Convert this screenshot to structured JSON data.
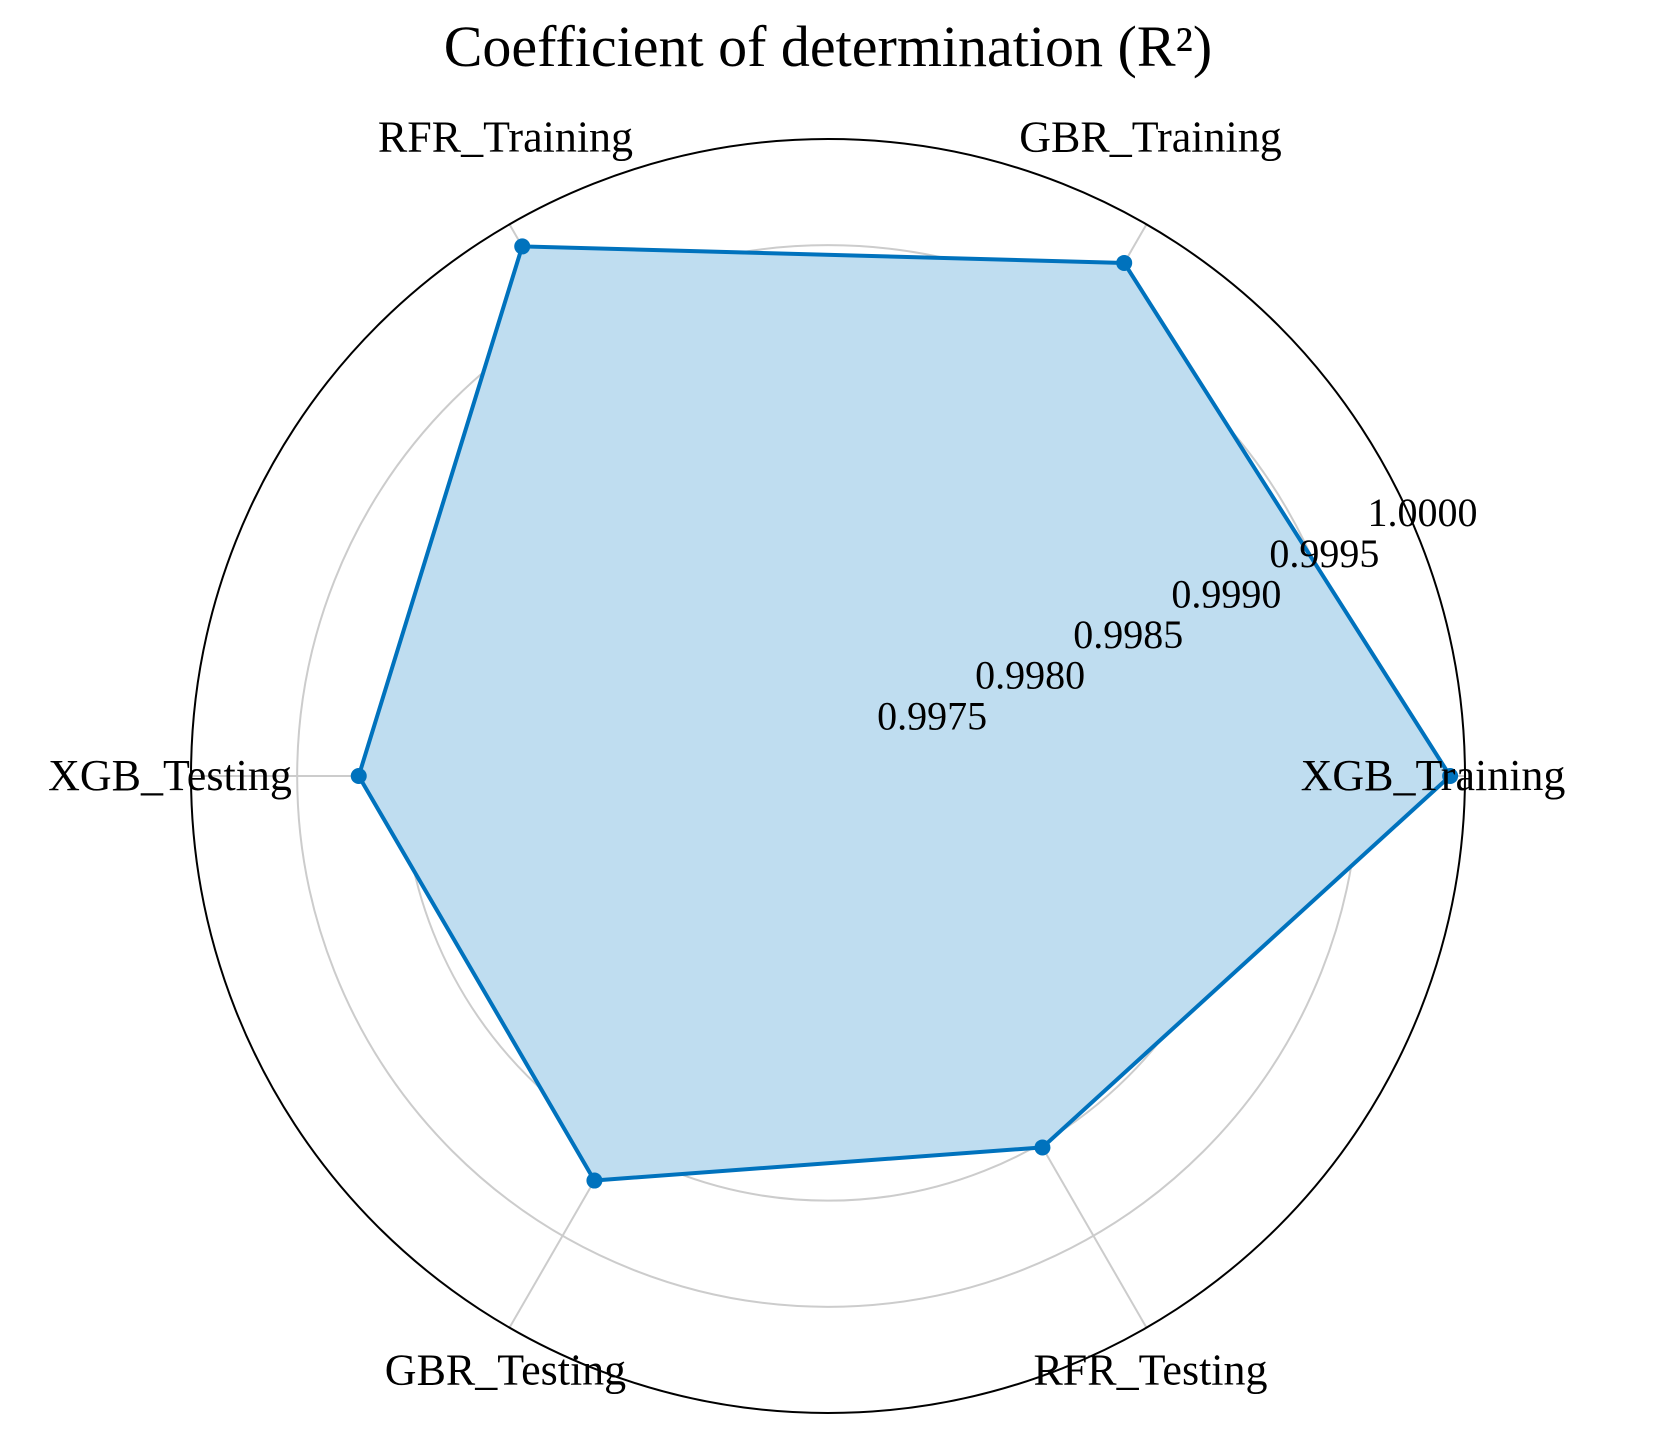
{
  "chart_data": {
    "type": "radar",
    "title": "Coefficient of determination (R²)",
    "categories": [
      "XGB_Training",
      "GBR_Training",
      "RFR_Training",
      "XGB_Testing",
      "GBR_Testing",
      "RFR_Testing"
    ],
    "series": [
      {
        "name": "R²",
        "values": [
          0.99993,
          0.99979,
          0.99988,
          0.99921,
          0.9992,
          0.99902
        ],
        "color": "#0072BD",
        "fill": "#BFDDF0"
      }
    ],
    "rlim": [
      0.997,
      1.0
    ],
    "rticks": [
      0.9975,
      0.998,
      0.9985,
      0.999,
      0.9995,
      1.0
    ],
    "rtick_labels": [
      "0.9975",
      "0.9980",
      "0.9985",
      "0.9990",
      "0.9995",
      "1.0000"
    ],
    "grid": true,
    "colors": {
      "grid": "#cccccc",
      "outer": "#000000"
    }
  }
}
